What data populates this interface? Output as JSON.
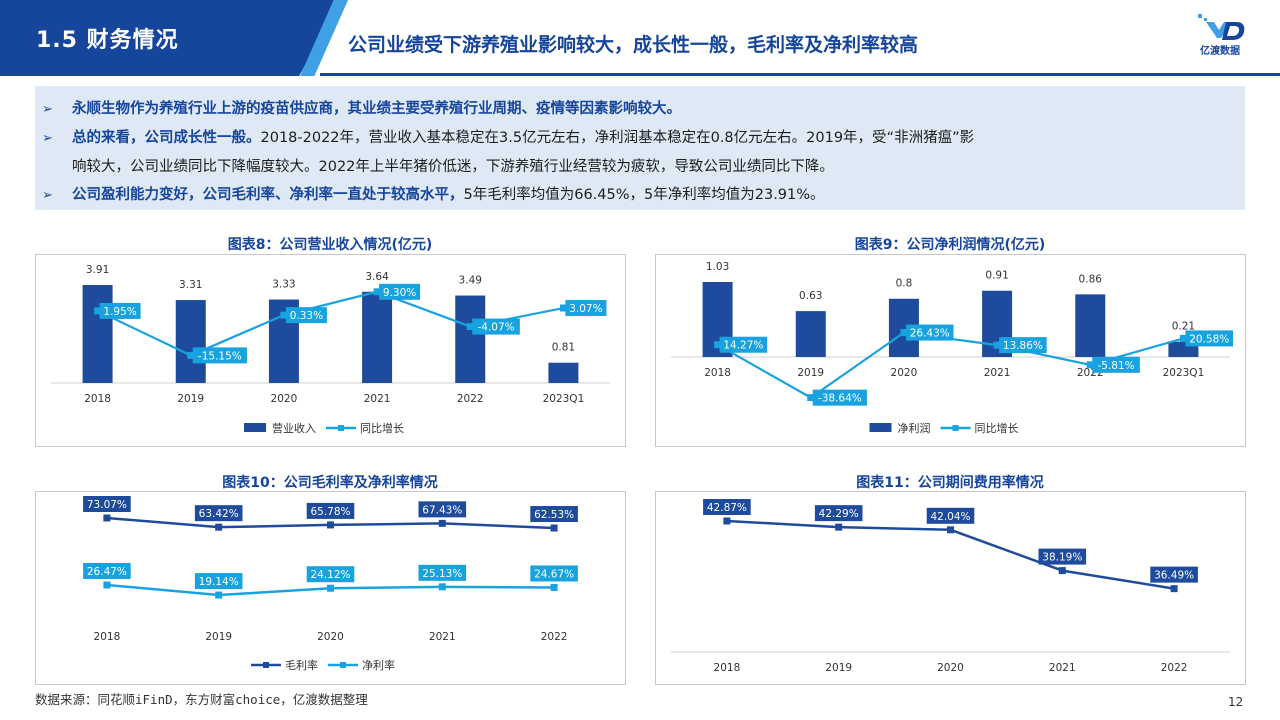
{
  "header": {
    "section": "1.5 财务情况",
    "title": "公司业绩受下游养殖业影响较大，成长性一般，毛利率及净利率较高",
    "logo_text": "亿渡数据"
  },
  "summary": {
    "b1": "永顺生物作为养殖行业上游的疫苗供应商，其业绩主要受养殖行业周期、疫情等因素影响较大。",
    "b2_bold": "总的来看，公司成长性一般。",
    "b2_rest1": "2018-2022年，营业收入基本稳定在3.5亿元左右，净利润基本稳定在0.8亿元左右。2019年，受“非洲猪瘟”影",
    "b2_rest2": "响较大，公司业绩同比下降幅度较大。2022年上半年猪价低迷，下游养殖行业经营较为疲软，导致公司业绩同比下降。",
    "b3_bold": "公司盈利能力变好，公司毛利率、净利率一直处于较高水平，",
    "b3_rest": "5年毛利率均值为66.45%，5年净利率均值为23.91%。"
  },
  "colors": {
    "dark": "#1e4b9b",
    "light": "#18a3e0"
  },
  "chart_data": [
    {
      "type": "bar",
      "title": "图表8：公司营业收入情况(亿元)",
      "categories": [
        "2018",
        "2019",
        "2020",
        "2021",
        "2022",
        "2023Q1"
      ],
      "series": [
        {
          "name": "营业收入",
          "values": [
            3.91,
            3.31,
            3.33,
            3.64,
            3.49,
            0.81
          ],
          "labels": [
            "3.91",
            "3.31",
            "3.33",
            "3.64",
            "3.49",
            "0.81"
          ]
        },
        {
          "name": "同比增长",
          "type": "line",
          "values": [
            1.95,
            -15.15,
            0.33,
            9.3,
            -4.07,
            3.07
          ],
          "labels": [
            "1.95%",
            "-15.15%",
            "0.33%",
            "9.30%",
            "-4.07%",
            "3.07%"
          ]
        }
      ]
    },
    {
      "type": "bar",
      "title": "图表9：公司净利润情况(亿元)",
      "categories": [
        "2018",
        "2019",
        "2020",
        "2021",
        "2022",
        "2023Q1"
      ],
      "series": [
        {
          "name": "净利润",
          "values": [
            1.03,
            0.63,
            0.8,
            0.91,
            0.86,
            0.21
          ],
          "labels": [
            "1.03",
            "0.63",
            "0.8",
            "0.91",
            "0.86",
            "0.21"
          ]
        },
        {
          "name": "同比增长",
          "type": "line",
          "values": [
            14.27,
            -38.64,
            26.43,
            13.86,
            -5.81,
            20.58
          ],
          "labels": [
            "14.27%",
            "-38.64%",
            "26.43%",
            "13.86%",
            "-5.81%",
            "20.58%"
          ]
        }
      ]
    },
    {
      "type": "line",
      "title": "图表10：公司毛利率及净利率情况",
      "categories": [
        "2018",
        "2019",
        "2020",
        "2021",
        "2022"
      ],
      "series": [
        {
          "name": "毛利率",
          "values": [
            73.07,
            63.42,
            65.78,
            67.43,
            62.53
          ],
          "labels": [
            "73.07%",
            "63.42%",
            "65.78%",
            "67.43%",
            "62.53%"
          ]
        },
        {
          "name": "净利率",
          "values": [
            26.47,
            19.14,
            24.12,
            25.13,
            24.67
          ],
          "labels": [
            "26.47%",
            "19.14%",
            "24.12%",
            "25.13%",
            "24.67%"
          ]
        }
      ]
    },
    {
      "type": "line",
      "title": "图表11：公司期间费用率情况",
      "categories": [
        "2018",
        "2019",
        "2020",
        "2021",
        "2022"
      ],
      "series": [
        {
          "values": [
            42.87,
            42.29,
            42.04,
            38.19,
            36.49
          ],
          "labels": [
            "42.87%",
            "42.29%",
            "42.04%",
            "38.19%",
            "36.49%"
          ]
        }
      ]
    }
  ],
  "footer": {
    "source": "数据来源：同花顺iFinD，东方财富choice，亿渡数据整理",
    "page": "12"
  }
}
